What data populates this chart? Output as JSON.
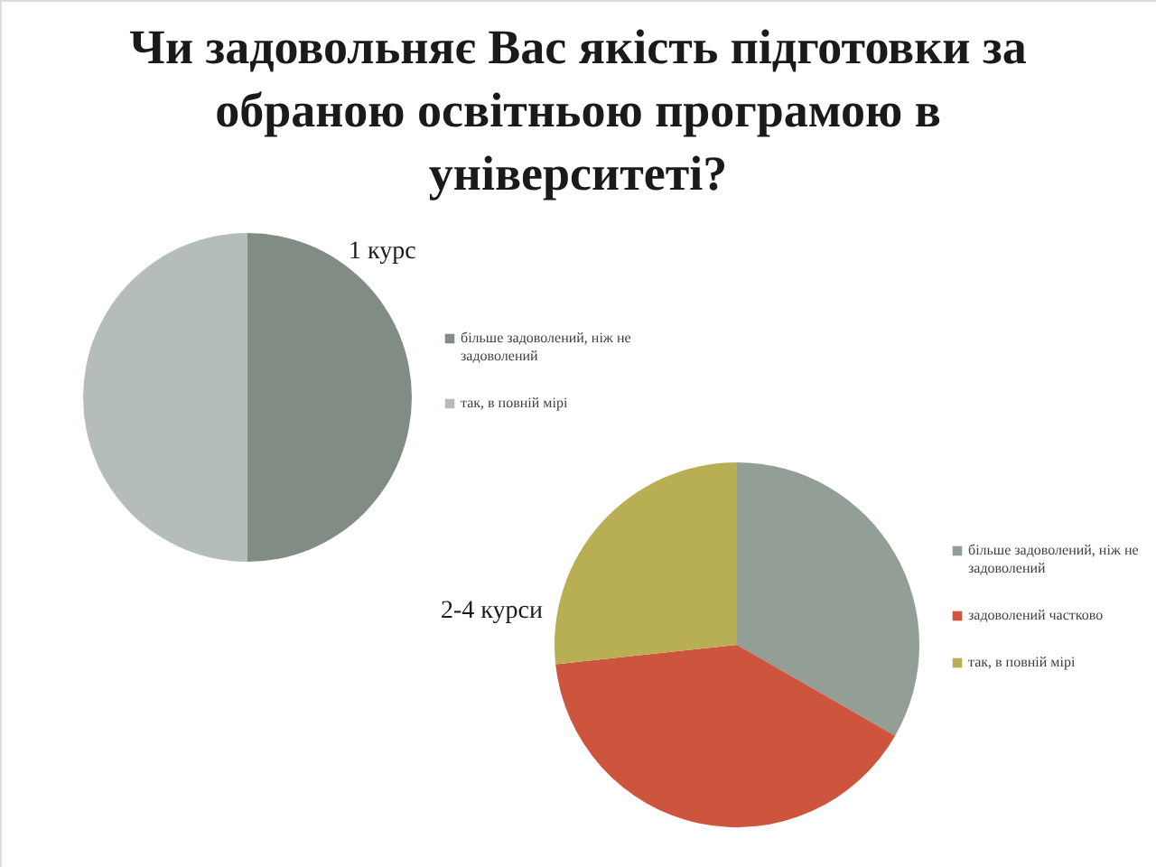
{
  "chart_data": [
    {
      "type": "pie",
      "title": "Чи задовольняє Вас якість підготовки за обраною освітньою програмою  в університеті?",
      "subtitle": "1 курс",
      "categories": [
        "більше задоволений, ніж не задоволений",
        "так, в повній мірі"
      ],
      "values": [
        50,
        50
      ],
      "colors": [
        "#818c84",
        "#b4bdb7"
      ],
      "legend": "right"
    },
    {
      "type": "pie",
      "title": "2-4 курси",
      "categories": [
        "більше задоволений, ніж не задоволений",
        "задоволений частково",
        "так, в повній мірі"
      ],
      "values": [
        33.3,
        40,
        26.7
      ],
      "colors": [
        "#929e96",
        "#cd553d",
        "#b8af54"
      ],
      "legend": "right"
    }
  ]
}
